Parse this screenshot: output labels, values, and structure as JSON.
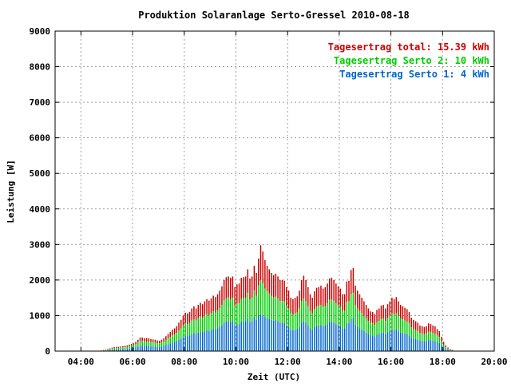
{
  "chart_data": {
    "type": "bar",
    "stacked": true,
    "title": "Produktion Solaranlage Serto-Gressel 2010-08-18",
    "xlabel": "Zeit (UTC)",
    "ylabel": "Leistung [W]",
    "x_ticks": [
      "04:00",
      "06:00",
      "08:00",
      "10:00",
      "12:00",
      "14:00",
      "16:00",
      "18:00",
      "20:00"
    ],
    "xlim_hours": [
      3,
      20
    ],
    "y_ticks": [
      "0",
      "1000",
      "2000",
      "3000",
      "4000",
      "5000",
      "6000",
      "7000",
      "8000",
      "9000"
    ],
    "ylim": [
      0,
      9000
    ],
    "grid": true,
    "legend_position": "top-right",
    "interval_minutes": 5,
    "first_interval_start": "04:40",
    "colors": {
      "serto1": "#0066cc",
      "serto2": "#00cc00",
      "total": "#cc0000"
    },
    "legend": [
      {
        "key": "total",
        "label": "Tagesertrag total: 15.39 kWh"
      },
      {
        "key": "serto2",
        "label": "Tagesertrag Serto 2: 10 kWh"
      },
      {
        "key": "serto1",
        "label": "Tagesertrag Serto 1: 4 kWh"
      }
    ],
    "total_values": [
      10,
      20,
      30,
      40,
      60,
      80,
      100,
      110,
      120,
      120,
      130,
      140,
      150,
      160,
      180,
      200,
      220,
      260,
      320,
      380,
      380,
      360,
      360,
      360,
      340,
      330,
      320,
      300,
      290,
      320,
      360,
      420,
      480,
      540,
      600,
      640,
      700,
      800,
      880,
      1000,
      1080,
      1060,
      1100,
      1200,
      1260,
      1200,
      1300,
      1360,
      1320,
      1400,
      1460,
      1420,
      1480,
      1560,
      1520,
      1600,
      1700,
      1820,
      2000,
      2080,
      2100,
      2060,
      2100,
      1800,
      1880,
      1900,
      2060,
      2080,
      2100,
      2300,
      2040,
      2100,
      2400,
      2200,
      2600,
      2980,
      2800,
      2560,
      2400,
      2300,
      2200,
      2140,
      2180,
      2100,
      2000,
      2000,
      1980,
      1800,
      1700,
      1500,
      1460,
      1500,
      1540,
      1700,
      2000,
      2120,
      2000,
      1800,
      1600,
      1500,
      1680,
      1780,
      1800,
      1840,
      1760,
      1800,
      1900,
      2040,
      2060,
      2000,
      1900,
      1820,
      1760,
      1600,
      1600,
      1960,
      1980,
      2280,
      2340,
      1840,
      1700,
      1600,
      1500,
      1400,
      1300,
      1200,
      1120,
      1100,
      1040,
      1160,
      1200,
      1280,
      1300,
      1200,
      1320,
      1400,
      1500,
      1460,
      1520,
      1400,
      1300,
      1260,
      1220,
      1180,
      1100,
      940,
      880,
      840,
      800,
      720,
      700,
      680,
      700,
      780,
      760,
      720,
      700,
      620,
      560,
      400,
      260,
      160,
      100,
      60,
      40
    ],
    "serto2_values": [
      8,
      15,
      22,
      30,
      45,
      60,
      75,
      80,
      90,
      90,
      100,
      105,
      110,
      120,
      135,
      150,
      165,
      195,
      240,
      285,
      285,
      270,
      270,
      270,
      255,
      250,
      240,
      225,
      220,
      240,
      270,
      315,
      360,
      400,
      440,
      470,
      510,
      580,
      640,
      720,
      780,
      760,
      790,
      860,
      900,
      860,
      930,
      970,
      940,
      1000,
      1040,
      1010,
      1060,
      1120,
      1080,
      1140,
      1210,
      1300,
      1420,
      1480,
      1500,
      1460,
      1500,
      1280,
      1340,
      1350,
      1460,
      1480,
      1500,
      1640,
      1450,
      1500,
      1700,
      1560,
      1850,
      2000,
      1900,
      1760,
      1680,
      1620,
      1550,
      1510,
      1530,
      1480,
      1410,
      1410,
      1400,
      1270,
      1200,
      1060,
      1030,
      1060,
      1090,
      1200,
      1400,
      1480,
      1400,
      1270,
      1130,
      1060,
      1180,
      1250,
      1270,
      1300,
      1240,
      1270,
      1340,
      1440,
      1450,
      1410,
      1340,
      1290,
      1240,
      1130,
      1130,
      1380,
      1400,
      1600,
      1640,
      1300,
      1200,
      1130,
      1060,
      990,
      920,
      850,
      790,
      780,
      740,
      820,
      850,
      900,
      920,
      850,
      930,
      990,
      1060,
      1030,
      1070,
      990,
      920,
      890,
      860,
      830,
      780,
      670,
      620,
      590,
      560,
      510,
      490,
      480,
      490,
      550,
      530,
      500,
      490,
      440,
      400,
      280,
      180,
      110,
      70,
      40,
      30
    ],
    "serto1_values": [
      4,
      8,
      12,
      16,
      24,
      32,
      40,
      44,
      48,
      48,
      52,
      56,
      60,
      64,
      72,
      80,
      88,
      104,
      128,
      152,
      152,
      144,
      144,
      144,
      136,
      132,
      128,
      120,
      116,
      128,
      144,
      168,
      192,
      216,
      240,
      256,
      280,
      320,
      352,
      400,
      432,
      424,
      440,
      480,
      504,
      480,
      520,
      544,
      528,
      560,
      584,
      568,
      592,
      624,
      608,
      640,
      680,
      728,
      800,
      832,
      840,
      824,
      840,
      720,
      752,
      760,
      824,
      832,
      840,
      920,
      816,
      840,
      960,
      880,
      1000,
      1040,
      1000,
      960,
      920,
      900,
      880,
      856,
      872,
      840,
      800,
      800,
      792,
      720,
      680,
      600,
      584,
      600,
      616,
      680,
      800,
      848,
      800,
      720,
      640,
      600,
      672,
      712,
      720,
      736,
      704,
      720,
      760,
      816,
      824,
      800,
      760,
      728,
      704,
      640,
      640,
      784,
      792,
      912,
      936,
      736,
      680,
      640,
      600,
      560,
      520,
      480,
      448,
      440,
      416,
      464,
      480,
      512,
      520,
      480,
      528,
      560,
      600,
      584,
      608,
      560,
      520,
      504,
      488,
      472,
      440,
      376,
      352,
      336,
      320,
      288,
      280,
      272,
      280,
      312,
      304,
      288,
      280,
      248,
      224,
      160,
      104,
      64,
      40,
      24,
      16
    ]
  }
}
